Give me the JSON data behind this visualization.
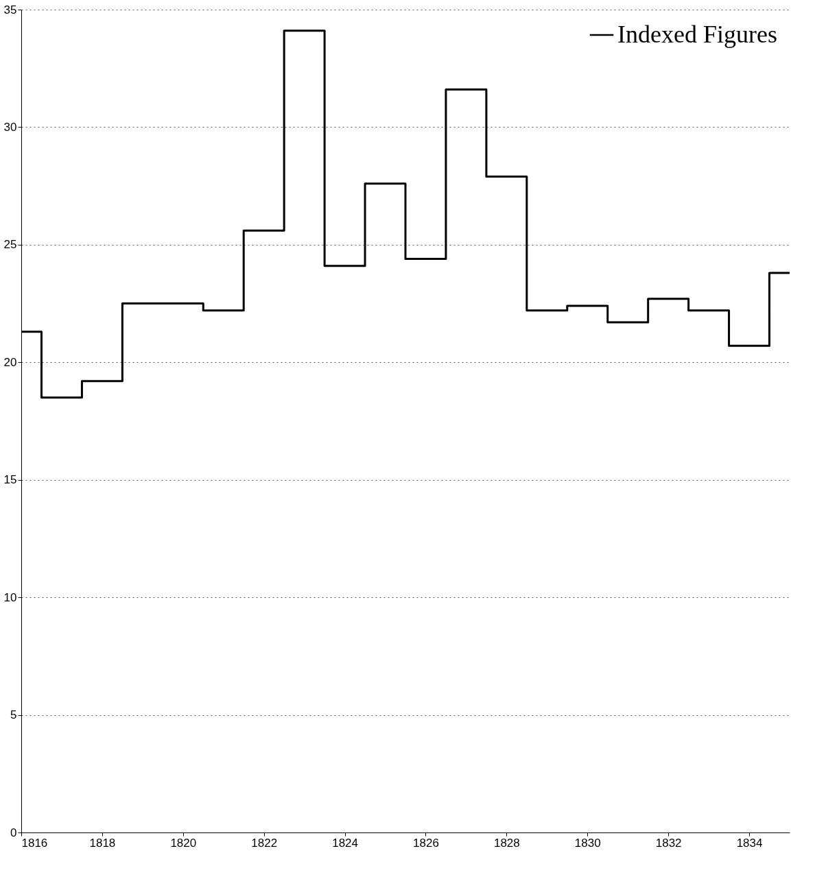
{
  "chart_data": {
    "type": "step",
    "x": [
      1816,
      1817,
      1818,
      1819,
      1820,
      1821,
      1822,
      1823,
      1824,
      1825,
      1826,
      1827,
      1828,
      1829,
      1830,
      1831,
      1832,
      1833,
      1834,
      1835
    ],
    "series": [
      {
        "name": "Indexed Figures",
        "color": "#000000",
        "values": [
          21.3,
          18.5,
          19.2,
          22.5,
          22.5,
          22.2,
          25.6,
          34.1,
          24.1,
          27.6,
          24.4,
          31.6,
          27.9,
          22.2,
          22.4,
          21.7,
          22.7,
          22.2,
          20.7,
          23.8
        ]
      }
    ],
    "xlim": [
      1816,
      1835
    ],
    "xticks": [
      1816,
      1818,
      1820,
      1822,
      1824,
      1826,
      1828,
      1830,
      1832,
      1834
    ],
    "ylim": [
      0,
      35
    ],
    "yticks": [
      0,
      5,
      10,
      15,
      20,
      25,
      30,
      35
    ],
    "grid": "y",
    "legend": "top right",
    "line_style": "solid",
    "marker": "none"
  }
}
